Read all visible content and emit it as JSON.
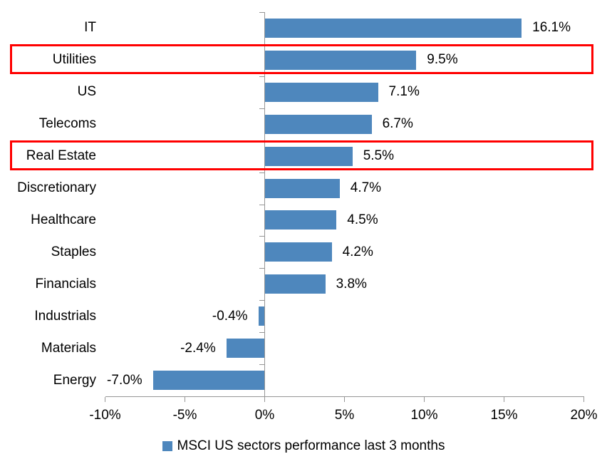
{
  "chart_data": {
    "type": "bar",
    "orientation": "horizontal",
    "title": "",
    "categories": [
      "IT",
      "Utilities",
      "US",
      "Telecoms",
      "Real Estate",
      "Discretionary",
      "Healthcare",
      "Staples",
      "Financials",
      "Industrials",
      "Materials",
      "Energy"
    ],
    "values": [
      16.1,
      9.5,
      7.1,
      6.7,
      5.5,
      4.7,
      4.5,
      4.2,
      3.8,
      -0.4,
      -2.4,
      -7.0
    ],
    "value_labels": [
      "16.1%",
      "9.5%",
      "7.1%",
      "6.7%",
      "5.5%",
      "4.7%",
      "4.5%",
      "4.2%",
      "3.8%",
      "-0.4%",
      "-2.4%",
      "-7.0%"
    ],
    "highlighted_categories": [
      "Utilities",
      "Real Estate"
    ],
    "x_tick_values": [
      -10,
      -5,
      0,
      5,
      10,
      15,
      20
    ],
    "x_tick_labels": [
      "-10%",
      "-5%",
      "0%",
      "5%",
      "10%",
      "15%",
      "20%"
    ],
    "xlim": [
      -10,
      20
    ],
    "grid": false,
    "legend": "MSCI US sectors performance last 3 months",
    "legend_position": "bottom",
    "colors": {
      "bar": "#4E87BD",
      "highlight_border": "#FF0000",
      "axis": "#969696",
      "text": "#000000",
      "background": "#FFFFFF"
    }
  }
}
